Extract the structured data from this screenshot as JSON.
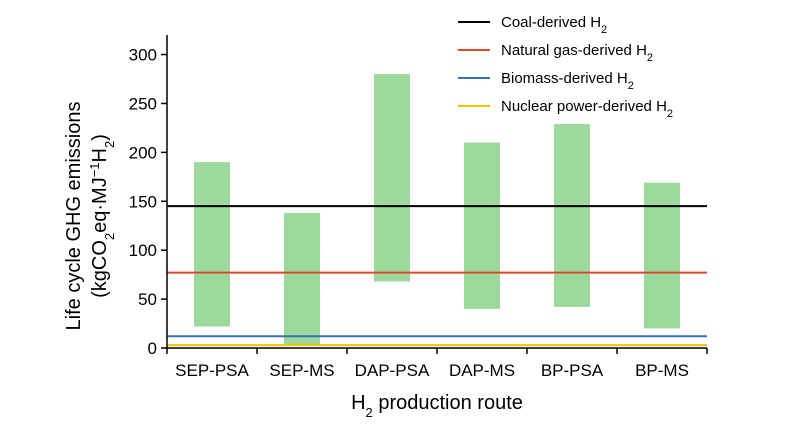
{
  "chart_data": {
    "type": "bar",
    "bar_kind": "floating-range",
    "categories": [
      "SEP-PSA",
      "SEP-MS",
      "DAP-PSA",
      "DAP-MS",
      "BP-PSA",
      "BP-MS"
    ],
    "ranges": [
      {
        "low": 22,
        "high": 190
      },
      {
        "low": 3,
        "high": 138
      },
      {
        "low": 68,
        "high": 280
      },
      {
        "low": 40,
        "high": 210
      },
      {
        "low": 42,
        "high": 229
      },
      {
        "low": 20,
        "high": 169
      }
    ],
    "bar_color": "#9dd89d",
    "reference_lines": [
      {
        "name": "Coal-derived",
        "sub": "2",
        "value": 145,
        "color": "#000000"
      },
      {
        "name": "Natural gas-derived",
        "sub": "2",
        "value": 77,
        "color": "#d9492a"
      },
      {
        "name": "Biomass-derived",
        "sub": "2",
        "value": 12,
        "color": "#3a6fb0"
      },
      {
        "name": "Nuclear power-derived",
        "sub": "2",
        "value": 3,
        "color": "#f5c400"
      }
    ],
    "legend_prefix": "H",
    "legend_position": "top-right",
    "ylim": [
      0,
      320
    ],
    "yticks": [
      0,
      50,
      100,
      150,
      200,
      250,
      300
    ],
    "ylabel_line1": "Life cycle GHG emissions",
    "ylabel_line2": {
      "a": "(kgCO",
      "b": "2",
      "c": "eq·MJ",
      "d": "−1",
      "e": "H",
      "f": "2",
      "g": ")"
    },
    "xlabel": {
      "a": "H",
      "b": "2",
      "c": " production route"
    }
  }
}
